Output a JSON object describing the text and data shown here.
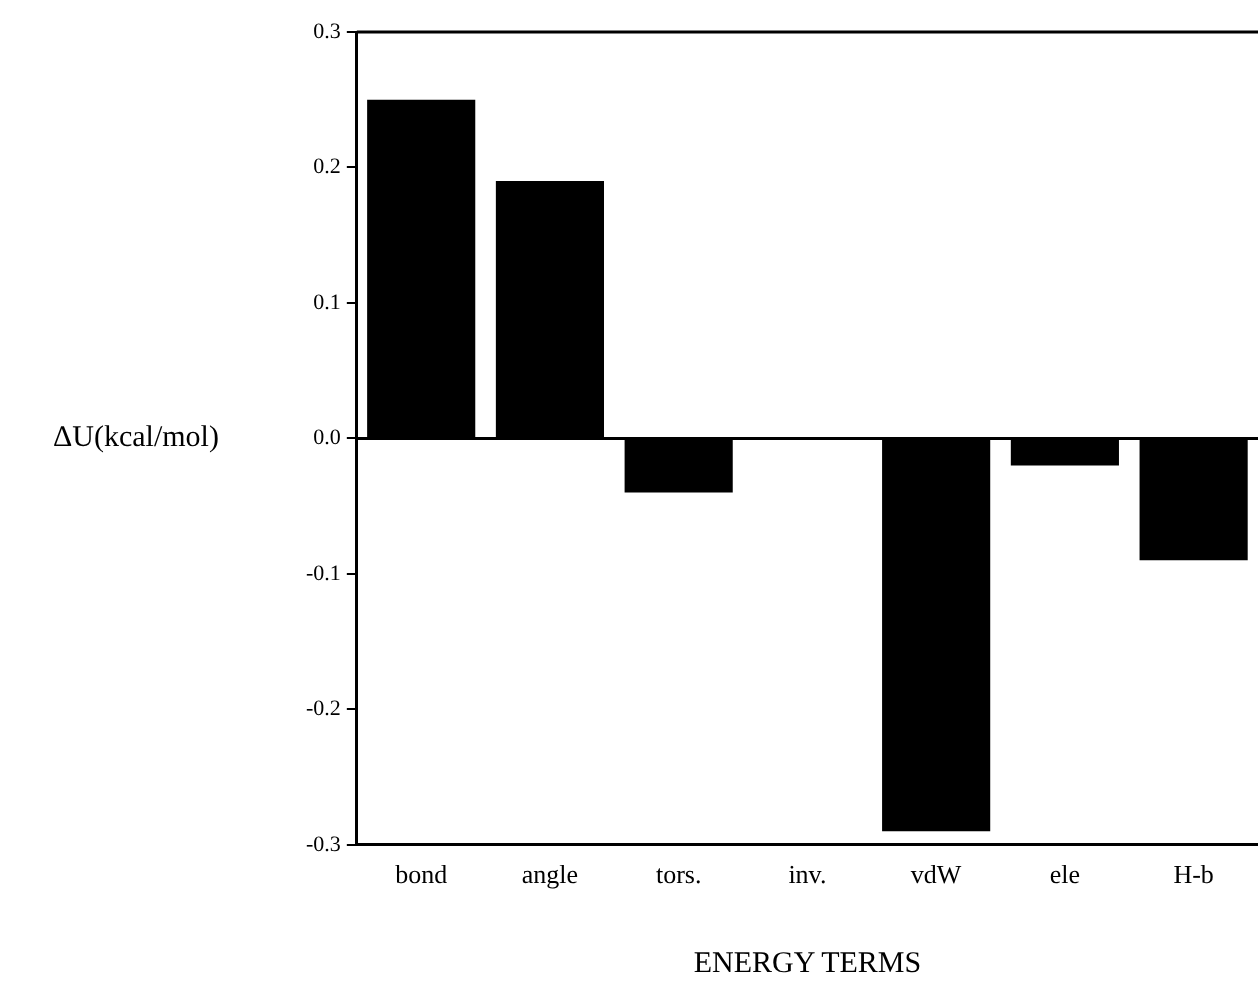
{
  "chart_data": {
    "type": "bar",
    "xlabel": "ENERGY TERMS",
    "ylabel": "ΔU(kcal/mol)",
    "categories": [
      "bond",
      "angle",
      "tors.",
      "inv.",
      "vdW",
      "ele",
      "H-b"
    ],
    "values": [
      0.25,
      0.19,
      -0.04,
      0,
      -0.29,
      -0.02,
      -0.09
    ],
    "color": "#000000",
    "ylim": [
      -0.3,
      0.3
    ],
    "yticks": [
      {
        "value": -0.3,
        "label": "-0.3"
      },
      {
        "value": -0.2,
        "label": "-0.2"
      },
      {
        "value": -0.1,
        "label": "-0.1"
      },
      {
        "value": 0,
        "label": "0.0"
      },
      {
        "value": 0.1,
        "label": "0.1"
      },
      {
        "value": 0.2,
        "label": "0.2"
      },
      {
        "value": 0.3,
        "label": "0.3"
      }
    ],
    "ref_lines": [
      {
        "axis": "y",
        "value": 0,
        "color": "#000000"
      }
    ],
    "grid": false,
    "legend": false
  }
}
